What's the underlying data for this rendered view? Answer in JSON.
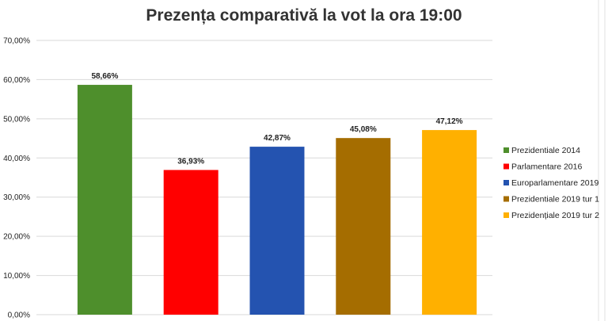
{
  "chart_data": {
    "type": "bar",
    "title": "Prezența comparativă la vot la ora 19:00",
    "xlabel": "",
    "ylabel": "",
    "ylim": [
      0,
      70
    ],
    "ytick_labels": [
      "0,00%",
      "10,00%",
      "20,00%",
      "30,00%",
      "40,00%",
      "50,00%",
      "60,00%",
      "70,00%"
    ],
    "grid": true,
    "legend_position": "right",
    "categories": [
      "Prezidentiale 2014",
      "Parlamentare 2016",
      "Europarlamentare 2019",
      "Prezidentiale 2019 tur 1",
      "Prezidențiale 2019 tur 2"
    ],
    "values": [
      58.66,
      36.93,
      42.87,
      45.08,
      47.12
    ],
    "data_labels": [
      "58,66%",
      "36,93%",
      "42,87%",
      "45,08%",
      "47,12%"
    ],
    "colors": [
      "#4e8f2c",
      "#ff0000",
      "#2453b0",
      "#a56d00",
      "#ffb000"
    ]
  }
}
